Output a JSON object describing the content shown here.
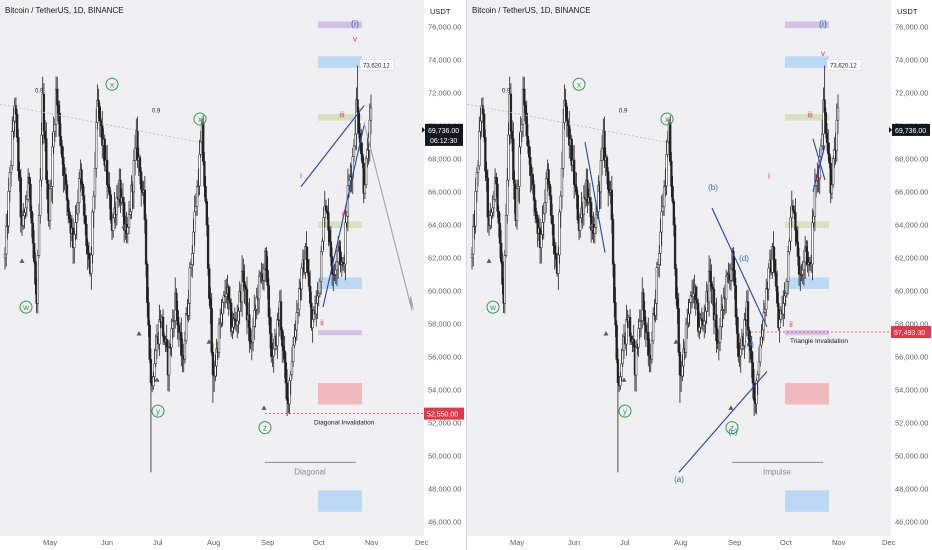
{
  "colors": {
    "background": "#f0f0f3",
    "axis_background": "#ffffff",
    "candle": "#222222",
    "wave_green": "#2e9e4f",
    "wave_red": "#e0394a",
    "wave_blue": "#2a6fb5",
    "trend_line": "#2442b5",
    "projection": "#a0a4ab",
    "invalidation_red": "#e0394a",
    "price_tag_dark": "#131722",
    "box_purple": "#c9b2e3",
    "box_blue": "#a9d0f5",
    "box_green": "#cfdcb2",
    "box_red": "#f0a7ab"
  },
  "chart_data": [
    {
      "type": "candlestick",
      "title": "Bitcoin / TetherUS, 1D, BINANCE",
      "currency_label": "USDT",
      "x_tick_labels": [
        "May",
        "Jun",
        "Jul",
        "Aug",
        "Sep",
        "Oct",
        "Nov",
        "Dec"
      ],
      "y_tick_labels": [
        "46,000.00",
        "48,000.00",
        "50,000.00",
        "52,000.00",
        "54,000.00",
        "56,000.00",
        "58,000.00",
        "60,000.00",
        "62,000.00",
        "64,000.00",
        "66,000.00",
        "68,000.00",
        "70,000.00",
        "72,000.00",
        "74,000.00",
        "76,000.00"
      ],
      "y_range": [
        45500,
        77000
      ],
      "last_price": "69,736.00",
      "countdown": "06:12:30",
      "high_label": "73,620.12",
      "invalidation_price": "52,550.00",
      "invalidation_text": "Diagonal Invalidation",
      "pattern_label": "Diagonal",
      "fib_labels": [
        "0.9",
        "0.9"
      ],
      "wave_labels": [
        "x",
        "x",
        "w",
        "y",
        "z",
        "i",
        "ii",
        "iii",
        "iv",
        "v",
        "(i)"
      ]
    },
    {
      "type": "candlestick",
      "title": "Bitcoin / TetherUS, 1D, BINANCE",
      "currency_label": "USDT",
      "x_tick_labels": [
        "May",
        "Jun",
        "Jul",
        "Aug",
        "Sep",
        "Oct",
        "Nov",
        "Dec"
      ],
      "y_tick_labels": [
        "46,000.00",
        "48,000.00",
        "50,000.00",
        "52,000.00",
        "54,000.00",
        "56,000.00",
        "58,000.00",
        "60,000.00",
        "62,000.00",
        "64,000.00",
        "66,000.00",
        "68,000.00",
        "70,000.00",
        "72,000.00",
        "74,000.00",
        "76,000.00"
      ],
      "y_range": [
        45500,
        77000
      ],
      "last_price": "69,736.00",
      "high_label": "73,620.12",
      "invalidation_price": "57,493.30",
      "invalidation_text": "Triangle Invalidation",
      "pattern_label": "Impulse",
      "fib_labels": [
        "0.9",
        "0.9"
      ],
      "wave_labels": [
        "x",
        "x",
        "w",
        "y",
        "z",
        "(a)",
        "(b)",
        "(c)",
        "(d)",
        "(e)",
        "i",
        "ii",
        "iii",
        "iv",
        "v",
        "(i)"
      ]
    }
  ]
}
